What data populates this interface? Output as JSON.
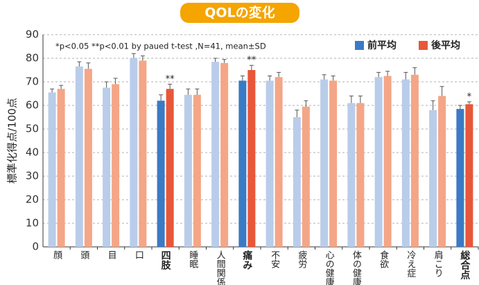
{
  "chart_data": {
    "type": "bar",
    "title": "QOLの変化",
    "y_label": "標準化得点/100点",
    "note": "*p<0.05 **p<0.01 by paued  t-test ,N=41, mean±SD",
    "categories": [
      "顔",
      "頭",
      "目",
      "口",
      "四肢",
      "睡眠",
      "人間関係",
      "痛み",
      "不安",
      "疲労",
      "心の健康",
      "体の健康",
      "食欲",
      "冷え症",
      "肩こり",
      "総合点"
    ],
    "category_label_colors": [
      "#222",
      "#222",
      "#222",
      "#222",
      "#e0102a",
      "#222",
      "#222",
      "#e0102a",
      "#222",
      "#222",
      "#222",
      "#222",
      "#222",
      "#222",
      "#222",
      "#e0102a"
    ],
    "series": [
      {
        "name": "前平均",
        "color": "#3b7ac4",
        "colors": [
          "#b9cdea",
          "#b9cdea",
          "#b9cdea",
          "#b9cdea",
          "#3b7ac4",
          "#b9cdea",
          "#b9cdea",
          "#3b7ac4",
          "#b9cdea",
          "#b9cdea",
          "#b9cdea",
          "#b9cdea",
          "#b9cdea",
          "#b9cdea",
          "#b9cdea",
          "#3b7ac4"
        ],
        "values": [
          65.5,
          76.5,
          67.5,
          80,
          62,
          64.5,
          78.5,
          70.5,
          70.5,
          55,
          71,
          61,
          72,
          71,
          58,
          58.5
        ],
        "errors": [
          1.5,
          2,
          2.5,
          2,
          2.5,
          2.5,
          1.5,
          2,
          2,
          3,
          2,
          3,
          2,
          3,
          4,
          1.5
        ]
      },
      {
        "name": "後平均",
        "color": "#e8573a",
        "colors": [
          "#f4a687",
          "#f4a687",
          "#f4a687",
          "#f4a687",
          "#e8573a",
          "#f4a687",
          "#f4a687",
          "#e8573a",
          "#f4a687",
          "#f4a687",
          "#f4a687",
          "#f4a687",
          "#f4a687",
          "#f4a687",
          "#f4a687",
          "#e8573a"
        ],
        "values": [
          67,
          75.5,
          69,
          79,
          67,
          64.5,
          78,
          75,
          72,
          59.5,
          70.5,
          61,
          72.5,
          73,
          64,
          60.5
        ],
        "errors": [
          1.5,
          2.5,
          2.5,
          2,
          2,
          2.5,
          1.5,
          2,
          2,
          2.5,
          2,
          3,
          2,
          3,
          4,
          1
        ]
      }
    ],
    "annotations": [
      {
        "category": "四肢",
        "text": "**"
      },
      {
        "category": "痛み",
        "text": "**"
      },
      {
        "category": "総合点",
        "text": "*"
      }
    ],
    "ylim": [
      0,
      90
    ],
    "yticks": [
      0,
      10,
      20,
      30,
      40,
      50,
      60,
      70,
      80,
      90
    ],
    "grid": true,
    "legend": "top-right"
  }
}
